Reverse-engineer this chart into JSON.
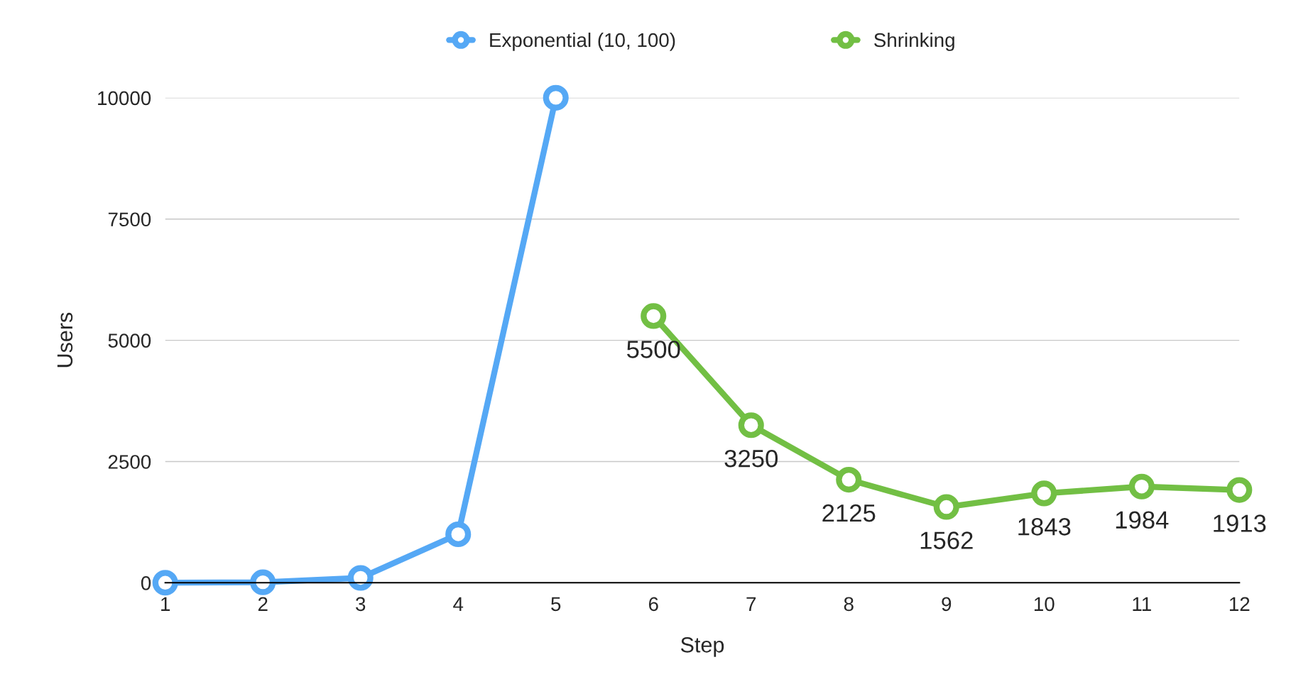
{
  "chart_data": {
    "type": "line",
    "xlabel": "Step",
    "ylabel": "Users",
    "categories": [
      "1",
      "2",
      "3",
      "4",
      "5",
      "6",
      "7",
      "8",
      "9",
      "10",
      "11",
      "12"
    ],
    "series": [
      {
        "name": "Exponential (10, 100)",
        "color": "#55a8f5",
        "values": [
          1,
          10,
          100,
          1000,
          10000,
          null,
          null,
          null,
          null,
          null,
          null,
          null
        ]
      },
      {
        "name": "Shrinking",
        "color": "#72bf44",
        "values": [
          null,
          null,
          null,
          null,
          null,
          5500,
          3250,
          2125,
          1562,
          1843,
          1984,
          1913
        ],
        "value_labels": [
          null,
          null,
          null,
          null,
          null,
          "5500",
          "3250",
          "2125",
          "1562",
          "1843",
          "1984",
          "1913"
        ]
      }
    ],
    "ylim": [
      0,
      10000
    ],
    "yticks": [
      0,
      2500,
      5000,
      7500,
      10000
    ],
    "grid": "y",
    "legend": "top",
    "marker": "circle",
    "line_style": "solid"
  }
}
